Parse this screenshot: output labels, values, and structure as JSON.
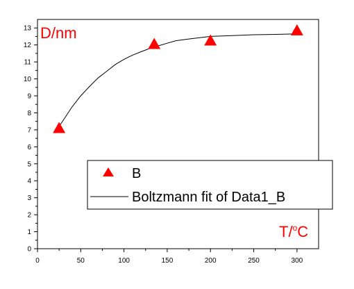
{
  "chart_data": {
    "type": "scatter",
    "xlabel": "T/",
    "xlabel_sup": "o",
    "xlabel_unit": "C",
    "ylabel": "D/nm",
    "xlim": [
      0,
      325
    ],
    "ylim": [
      0,
      13.5
    ],
    "xticks": [
      0,
      50,
      100,
      150,
      200,
      250,
      300
    ],
    "yticks": [
      0,
      1,
      2,
      3,
      4,
      5,
      6,
      7,
      8,
      9,
      10,
      11,
      12,
      13
    ],
    "grid": false,
    "legend_position": "center-right",
    "series": [
      {
        "name": "B",
        "kind": "scatter",
        "marker": "triangle",
        "color": "#ff0000",
        "x": [
          25,
          135,
          200,
          300
        ],
        "y": [
          7.1,
          12.05,
          12.25,
          12.85
        ]
      },
      {
        "name": "Boltzmann fit of Data1_B",
        "kind": "line",
        "color": "#000000",
        "x": [
          25,
          40,
          50,
          60,
          70,
          80,
          90,
          100,
          110,
          120,
          130,
          140,
          150,
          160,
          175,
          200,
          225,
          250,
          275,
          300
        ],
        "y": [
          7.2,
          8.35,
          9.0,
          9.55,
          10.05,
          10.45,
          10.85,
          11.15,
          11.4,
          11.6,
          11.8,
          11.95,
          12.1,
          12.25,
          12.35,
          12.5,
          12.55,
          12.6,
          12.62,
          12.65
        ]
      }
    ]
  }
}
